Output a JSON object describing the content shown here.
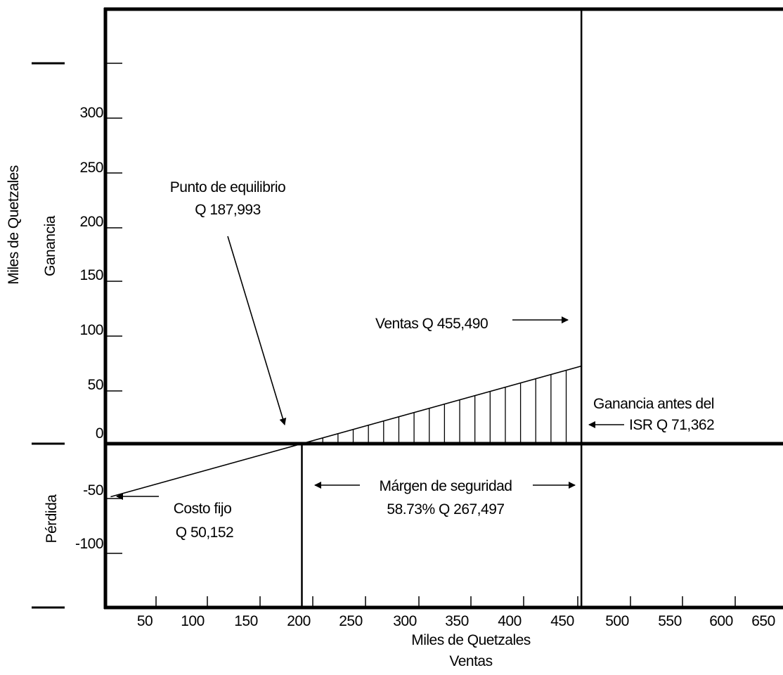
{
  "chart_data": {
    "type": "line",
    "title": "",
    "xlabel": "Miles de Quetzales",
    "xlabel2": "Ventas",
    "ylabel": "Miles de Quetzales",
    "ylabel_positive": "Ganancia",
    "ylabel_negative": "Pérdida",
    "x_ticks": [
      50,
      100,
      150,
      200,
      250,
      300,
      350,
      400,
      450,
      500,
      550,
      600,
      650
    ],
    "y_ticks": [
      300,
      250,
      200,
      150,
      100,
      50,
      0,
      -50,
      -100
    ],
    "xlim": [
      0,
      650
    ],
    "ylim": [
      -150,
      350
    ],
    "series": [
      {
        "x": [
          0,
          187.993,
          455.49
        ],
        "y": [
          -50.152,
          0,
          71.362
        ]
      }
    ],
    "reference_lines": {
      "break_even_x": 187.993,
      "sales_x": 455.49
    },
    "annotations": {
      "break_even_line1": "Punto de equilibrio",
      "break_even_line2": "Q 187,993",
      "sales": "Ventas Q 455,490",
      "profit_line1": "Ganancia antes del",
      "profit_line2": "ISR Q 71,362",
      "margin_line1": "Márgen de seguridad",
      "margin_line2": "58.73% Q 267,497",
      "fixed_cost_line1": "Costo fijo",
      "fixed_cost_line2": "Q 50,152"
    }
  }
}
